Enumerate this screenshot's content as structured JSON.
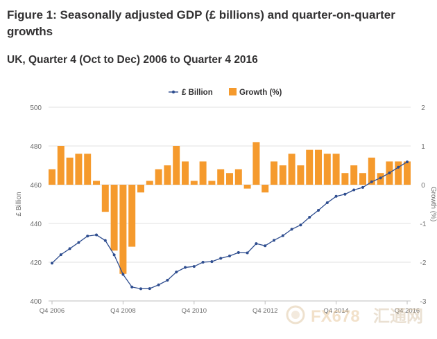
{
  "page": {
    "title": "Figure 1: Seasonally adjusted GDP (£ billions) and quarter-on-quarter growths",
    "subtitle": "UK, Quarter 4 (Oct to Dec) 2006 to Quarter 4 2016"
  },
  "watermark": {
    "text_latin": "FX678",
    "text_cn": "汇通网"
  },
  "colors": {
    "line": "#2e4d8f",
    "bar": "#f59a2d",
    "grid": "#e2e2e2",
    "axis_text": "#6e6e6e"
  },
  "chart_data": {
    "type": "bar+line",
    "legend_position": "top-center",
    "grid": true,
    "x_tick_labels": [
      "Q4 2006",
      "Q4 2008",
      "Q4 2010",
      "Q4 2012",
      "Q4 2014",
      "Q4 2016"
    ],
    "x_tick_indices": [
      0,
      8,
      16,
      24,
      32,
      40
    ],
    "left_axis": {
      "label": "£ Billion",
      "range": [
        400,
        500
      ],
      "ticks": [
        400,
        420,
        440,
        460,
        480,
        500
      ]
    },
    "right_axis": {
      "label": "Growth (%)",
      "range": [
        -3,
        2
      ],
      "ticks": [
        -3,
        -2,
        -1,
        0,
        1,
        2
      ]
    },
    "series": [
      {
        "name": "£ Billion",
        "type": "line",
        "axis": "left",
        "values": [
          419.5,
          423.9,
          427.0,
          430.2,
          433.5,
          434.1,
          431.2,
          423.8,
          413.7,
          407.2,
          406.3,
          406.4,
          408.3,
          410.7,
          414.9,
          417.3,
          417.8,
          420.0,
          420.3,
          422.0,
          423.2,
          425.0,
          424.8,
          429.6,
          428.5,
          431.3,
          433.7,
          437.0,
          439.2,
          443.2,
          446.8,
          450.7,
          454.0,
          455.1,
          457.3,
          458.6,
          461.5,
          463.5,
          466.1,
          469.0,
          471.8
        ]
      },
      {
        "name": "Growth (%)",
        "type": "bar",
        "axis": "right",
        "values": [
          0.4,
          1.0,
          0.7,
          0.8,
          0.8,
          0.1,
          -0.7,
          -1.7,
          -2.3,
          -1.6,
          -0.2,
          0.1,
          0.4,
          0.5,
          1.0,
          0.6,
          0.1,
          0.6,
          0.1,
          0.4,
          0.3,
          0.4,
          -0.1,
          1.1,
          -0.2,
          0.6,
          0.5,
          0.8,
          0.5,
          0.9,
          0.9,
          0.8,
          0.8,
          0.3,
          0.5,
          0.3,
          0.7,
          0.3,
          0.6,
          0.6,
          0.6
        ]
      }
    ]
  }
}
